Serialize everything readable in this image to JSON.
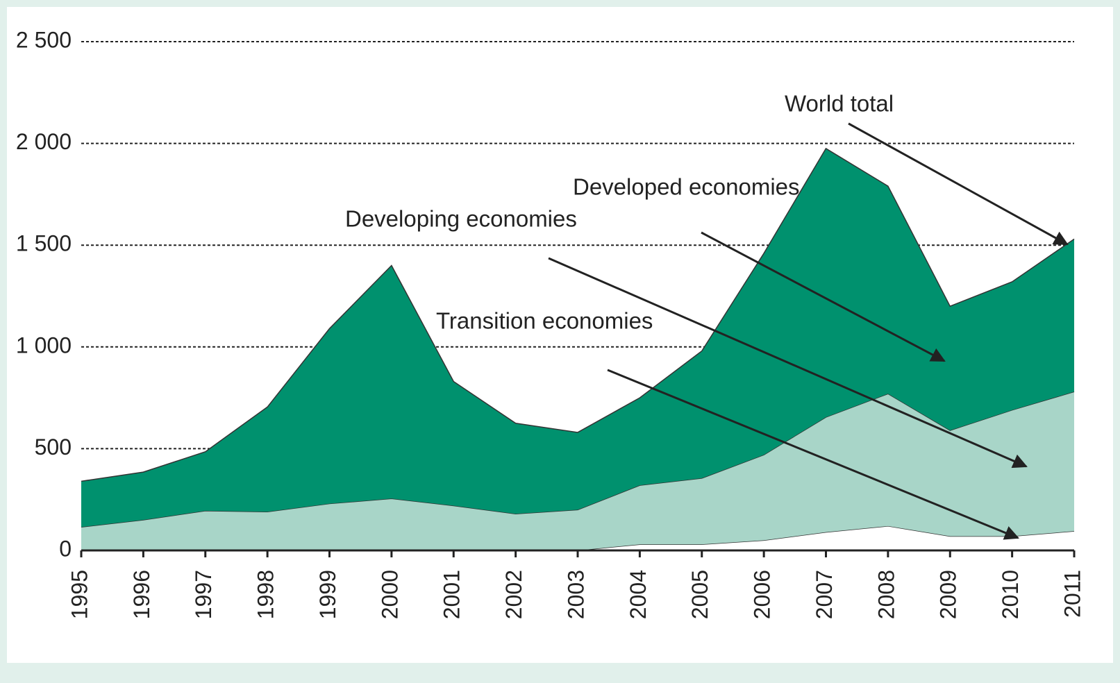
{
  "chart_data": {
    "type": "stacked-area",
    "categories": [
      "1995",
      "1996",
      "1997",
      "1998",
      "1999",
      "2000",
      "2001",
      "2002",
      "2003",
      "2004",
      "2005",
      "2006",
      "2007",
      "2008",
      "2009",
      "2010",
      "2011"
    ],
    "series": [
      {
        "name": "Transition economies",
        "color": "#ffffff",
        "values": [
          0,
          0,
          0,
          0,
          0,
          0,
          0,
          0,
          0,
          30,
          30,
          50,
          90,
          120,
          70,
          70,
          95
        ]
      },
      {
        "name": "Developing economies",
        "color": "#a8d5c8",
        "values": [
          115,
          150,
          195,
          190,
          230,
          255,
          220,
          180,
          200,
          290,
          325,
          420,
          565,
          650,
          520,
          620,
          685
        ]
      },
      {
        "name": "Developed economies",
        "color": "#00916e",
        "values": [
          225,
          235,
          290,
          515,
          860,
          1145,
          610,
          445,
          380,
          430,
          625,
          990,
          1320,
          1020,
          610,
          630,
          750
        ]
      }
    ],
    "annotations": [
      "World total",
      "Developed economies",
      "Developing economies",
      "Transition economies"
    ],
    "ylim": [
      0,
      2500
    ],
    "yticks": [
      0,
      500,
      {
        "value": 1000,
        "label": "1 000"
      },
      {
        "value": 1500,
        "label": "1 500"
      },
      {
        "value": 2000,
        "label": "2 000"
      },
      {
        "value": 2500,
        "label": "2 500"
      }
    ],
    "grid": true
  }
}
